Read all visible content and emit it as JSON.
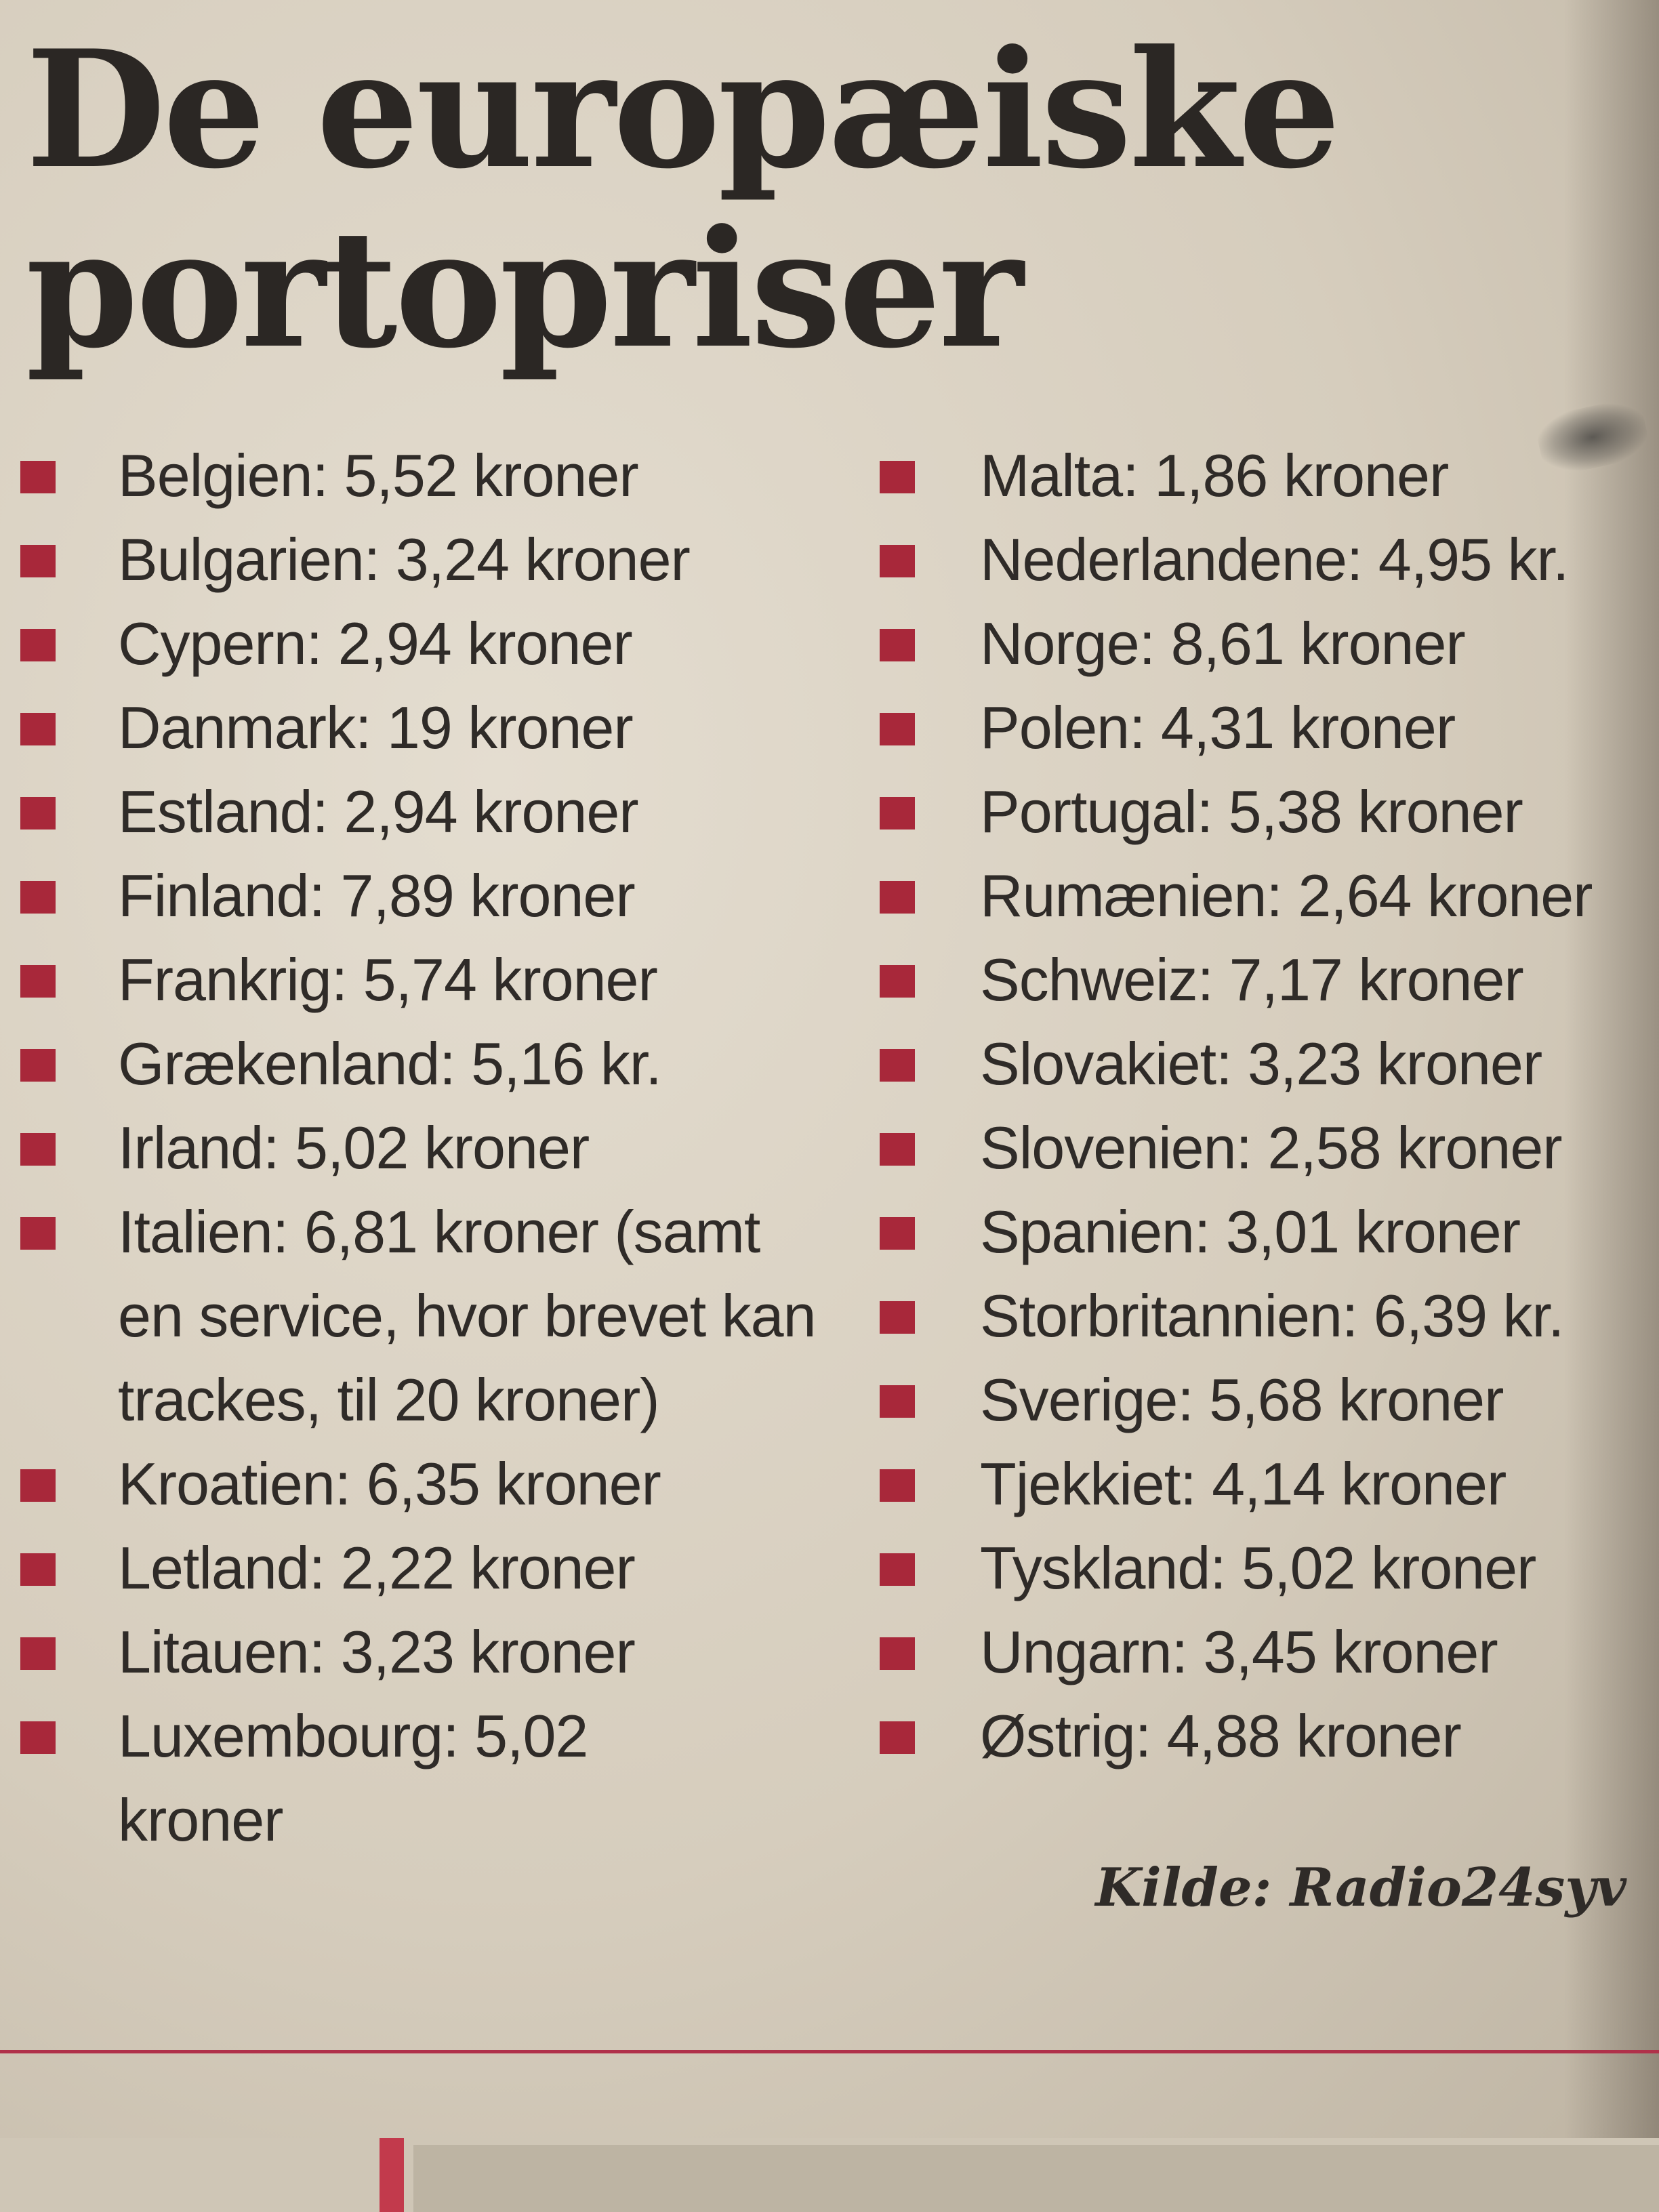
{
  "title": {
    "line1": "De europæiske",
    "line2": "portopriser"
  },
  "left_column": [
    {
      "text": "Belgien: 5,52 kroner"
    },
    {
      "text": "Bulgarien: 3,24 kroner"
    },
    {
      "text": "Cypern: 2,94 kroner"
    },
    {
      "text": "Danmark: 19 kroner"
    },
    {
      "text": "Estland: 2,94 kroner"
    },
    {
      "text": "Finland: 7,89 kroner"
    },
    {
      "text": "Frankrig: 5,74 kroner"
    },
    {
      "text": "Grækenland: 5,16 kr."
    },
    {
      "text": "Irland: 5,02 kroner"
    },
    {
      "text": "Italien: 6,81 kroner (samt en service, hvor brevet kan trackes, til 20 kroner)"
    },
    {
      "text": "Kroatien: 6,35 kroner"
    },
    {
      "text": "Letland: 2,22 kroner"
    },
    {
      "text": "Litauen: 3,23 kroner"
    },
    {
      "text": "Luxembourg: 5,02 kroner"
    }
  ],
  "right_column": [
    {
      "text": "Malta: 1,86 kroner"
    },
    {
      "text": "Nederlandene: 4,95 kr."
    },
    {
      "text": "Norge: 8,61 kroner"
    },
    {
      "text": "Polen: 4,31 kroner"
    },
    {
      "text": "Portugal: 5,38 kroner"
    },
    {
      "text": "Rumænien: 2,64 kroner"
    },
    {
      "text": "Schweiz: 7,17 kroner"
    },
    {
      "text": "Slovakiet: 3,23 kroner"
    },
    {
      "text": "Slovenien: 2,58 kroner"
    },
    {
      "text": "Spanien: 3,01 kroner"
    },
    {
      "text": "Storbritannien: 6,39 kr."
    },
    {
      "text": "Sverige: 5,68 kroner"
    },
    {
      "text": "Tjekkiet: 4,14 kroner"
    },
    {
      "text": "Tyskland: 5,02 kroner"
    },
    {
      "text": "Ungarn: 3,45 kroner"
    },
    {
      "text": "Østrig: 4,88 kroner"
    }
  ],
  "source": "Kilde: Radio24syv",
  "colors": {
    "bullet": "#a8283a",
    "text": "#2f2b28",
    "paper": "#ddd5c6",
    "rule": "#b0314a"
  }
}
